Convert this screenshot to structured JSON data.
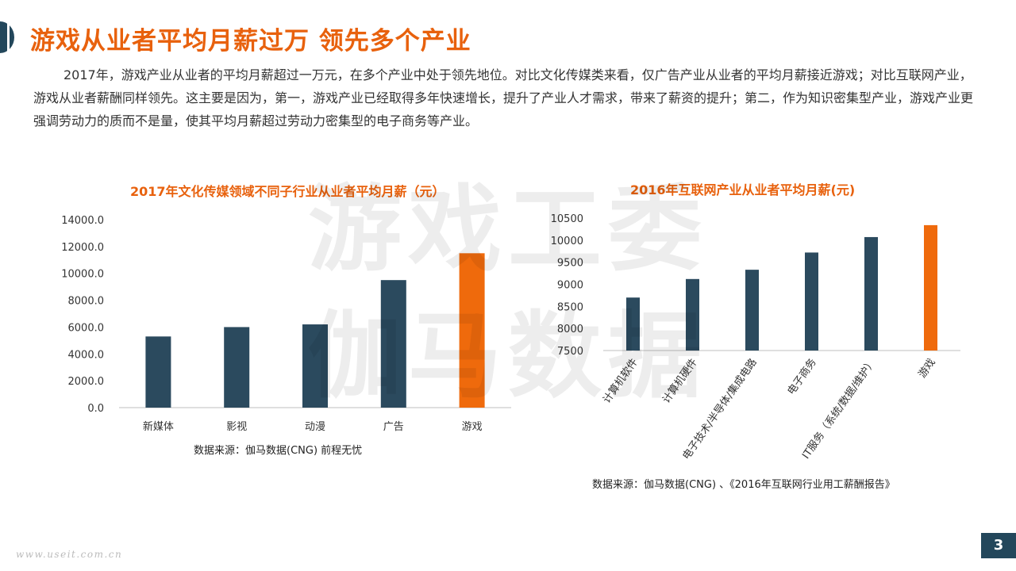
{
  "header": {
    "title": "游戏从业者平均月薪过万 领先多个产业"
  },
  "intro": {
    "text": "2017年，游戏产业从业者的平均月薪超过一万元，在多个产业中处于领先地位。对比文化传媒类来看，仅广告产业从业者的平均月薪接近游戏；对比互联网产业，游戏从业者薪酬同样领先。这主要是因为，第一，游戏产业已经取得多年快速增长，提升了产业人才需求，带来了薪资的提升；第二，作为知识密集型产业，游戏产业更强调劳动力的质而不是量，使其平均月薪超过劳动力密集型的电子商务等产业。"
  },
  "colors": {
    "title_orange": "#e8610d",
    "bar_navy": "#2b4a5e",
    "bar_highlight": "#ef6a0c",
    "axis": "#bfbfbf",
    "page_number_bg": "#23475b"
  },
  "watermark": {
    "line1": "游戏工委",
    "line2": "伽马数据"
  },
  "chart_data": [
    {
      "type": "bar",
      "title": "2017年文化传媒领域不同子行业从业者平均月薪（元）",
      "categories": [
        "新媒体",
        "影视",
        "动漫",
        "广告",
        "游戏"
      ],
      "values": [
        5300,
        6000,
        6200,
        9500,
        11500
      ],
      "highlight_index": 4,
      "ylim": [
        0,
        14000
      ],
      "yticks": [
        0,
        2000,
        4000,
        6000,
        8000,
        10000,
        12000,
        14000
      ],
      "ytick_labels": [
        "0.0",
        "2000.0",
        "4000.0",
        "6000.0",
        "8000.0",
        "10000.0",
        "12000.0",
        "14000.0"
      ],
      "grid": false,
      "source": "数据来源：伽马数据(CNG)  前程无忧"
    },
    {
      "type": "bar",
      "title": "2016年互联网产业从业者平均月薪(元)",
      "categories": [
        "计算机软件",
        "计算机硬件",
        "电子技术/半导体/集成电路",
        "电子商务",
        "IT服务（系统/数据/维护）",
        "游戏"
      ],
      "values": [
        8700,
        9120,
        9330,
        9720,
        10070,
        10340
      ],
      "highlight_index": 5,
      "ylim": [
        7500,
        10500
      ],
      "yticks": [
        7500,
        8000,
        8500,
        9000,
        9500,
        10000,
        10500
      ],
      "ytick_labels": [
        "7500",
        "8000",
        "8500",
        "9000",
        "9500",
        "10000",
        "10500"
      ],
      "grid": false,
      "source": "数据来源：伽马数据(CNG) 、《2016年互联网行业用工薪酬报告》"
    }
  ],
  "footer": {
    "site": "www.useit.com.cn",
    "page_number": "3"
  }
}
